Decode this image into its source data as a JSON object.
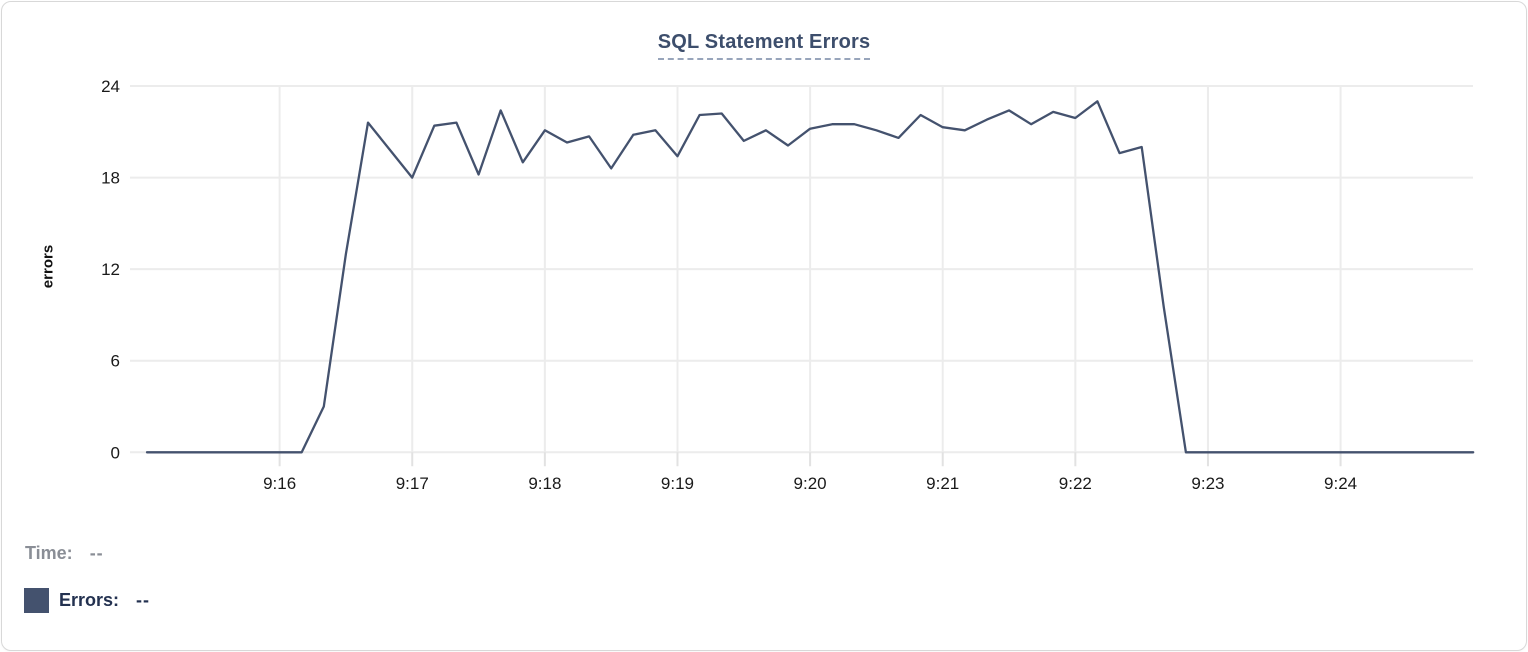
{
  "chart_data": {
    "type": "line",
    "title": "SQL Statement Errors",
    "xlabel": "",
    "ylabel": "errors",
    "ylim": [
      0,
      24
    ],
    "y_ticks": [
      0,
      6,
      12,
      18,
      24
    ],
    "x_tick_labels": [
      "9:16",
      "9:17",
      "9:18",
      "9:19",
      "9:20",
      "9:21",
      "9:22",
      "9:23",
      "9:24"
    ],
    "x_range": [
      "9:15:00",
      "9:25:00"
    ],
    "grid": true,
    "legend_position": "bottom-left",
    "series": [
      {
        "name": "Errors",
        "color": "#44526e",
        "points": [
          [
            "9:15:00",
            0
          ],
          [
            "9:15:10",
            0
          ],
          [
            "9:15:20",
            0
          ],
          [
            "9:15:30",
            0
          ],
          [
            "9:15:40",
            0
          ],
          [
            "9:15:50",
            0
          ],
          [
            "9:16:00",
            0
          ],
          [
            "9:16:10",
            0
          ],
          [
            "9:16:20",
            3
          ],
          [
            "9:16:30",
            13
          ],
          [
            "9:16:40",
            21.6
          ],
          [
            "9:16:50",
            19.8
          ],
          [
            "9:17:00",
            18
          ],
          [
            "9:17:10",
            21.4
          ],
          [
            "9:17:20",
            21.6
          ],
          [
            "9:17:30",
            18.2
          ],
          [
            "9:17:40",
            22.4
          ],
          [
            "9:17:50",
            19
          ],
          [
            "9:18:00",
            21.1
          ],
          [
            "9:18:10",
            20.3
          ],
          [
            "9:18:20",
            20.7
          ],
          [
            "9:18:30",
            18.6
          ],
          [
            "9:18:40",
            20.8
          ],
          [
            "9:18:50",
            21.1
          ],
          [
            "9:19:00",
            19.4
          ],
          [
            "9:19:10",
            22.1
          ],
          [
            "9:19:20",
            22.2
          ],
          [
            "9:19:30",
            20.4
          ],
          [
            "9:19:40",
            21.1
          ],
          [
            "9:19:50",
            20.1
          ],
          [
            "9:20:00",
            21.2
          ],
          [
            "9:20:10",
            21.5
          ],
          [
            "9:20:20",
            21.5
          ],
          [
            "9:20:30",
            21.1
          ],
          [
            "9:20:40",
            20.6
          ],
          [
            "9:20:50",
            22.1
          ],
          [
            "9:21:00",
            21.3
          ],
          [
            "9:21:10",
            21.1
          ],
          [
            "9:21:20",
            21.8
          ],
          [
            "9:21:30",
            22.4
          ],
          [
            "9:21:40",
            21.5
          ],
          [
            "9:21:50",
            22.3
          ],
          [
            "9:22:00",
            21.9
          ],
          [
            "9:22:10",
            23
          ],
          [
            "9:22:20",
            19.6
          ],
          [
            "9:22:30",
            20
          ],
          [
            "9:22:40",
            9.5
          ],
          [
            "9:22:50",
            0
          ],
          [
            "9:23:00",
            0
          ],
          [
            "9:23:10",
            0
          ],
          [
            "9:23:20",
            0
          ],
          [
            "9:23:30",
            0
          ],
          [
            "9:23:40",
            0
          ],
          [
            "9:23:50",
            0
          ],
          [
            "9:24:00",
            0
          ],
          [
            "9:24:10",
            0
          ],
          [
            "9:24:20",
            0
          ],
          [
            "9:24:30",
            0
          ],
          [
            "9:24:40",
            0
          ],
          [
            "9:24:50",
            0
          ],
          [
            "9:25:00",
            0
          ]
        ]
      }
    ]
  },
  "legend": {
    "time_label": "Time:",
    "time_value": "--",
    "errors_label": "Errors:",
    "errors_value": "--"
  },
  "appearance": {
    "line_color": "#44526e",
    "swatch_color": "#44526e",
    "title_color": "#3d4e6c",
    "title_underline_color": "#98a5bb",
    "grid_color": "#ececec",
    "axis_text_color": "#1a1a1a",
    "time_row_color": "#8a8e96",
    "errors_row_color": "#233150",
    "card_border_color": "#d8d8d8",
    "background_color": "#ffffff"
  }
}
